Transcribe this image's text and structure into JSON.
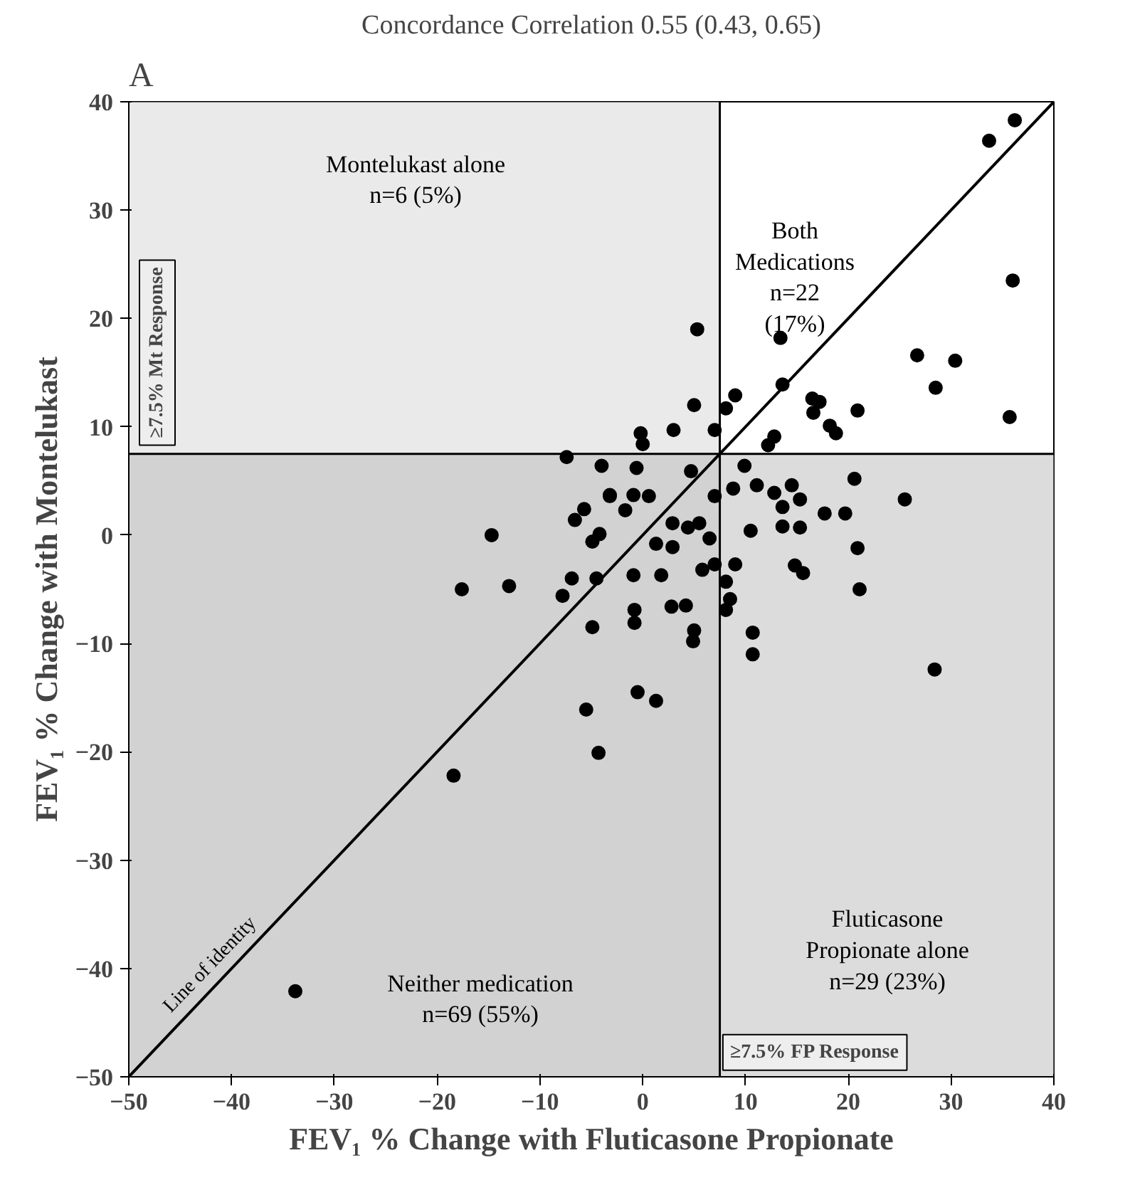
{
  "chart_data": {
    "type": "scatter",
    "title": "Concordance Correlation 0.55 (0.43, 0.65)",
    "xlabel": "FEV₁ % Change with Fluticasone Propionate",
    "ylabel": "FEV₁ % Change with Montelukast",
    "xlim": [
      -50,
      40
    ],
    "ylim": [
      -50,
      40
    ],
    "xticks": [
      -50,
      -40,
      -30,
      -20,
      -10,
      0,
      10,
      20,
      30,
      40
    ],
    "yticks": [
      -50,
      -40,
      -30,
      -20,
      -10,
      0,
      10,
      20,
      30,
      40
    ],
    "grid": false,
    "legend": false,
    "marker": "circle",
    "series": [
      {
        "color": "#000000",
        "x": [
          36.2,
          33.7,
          36.0,
          35.7,
          5.3,
          13.4,
          26.7,
          30.4,
          28.5,
          13.6,
          16.5,
          17.2,
          16.6,
          20.9,
          18.2,
          18.8,
          9.0,
          5.0,
          3.0,
          7.0,
          8.1,
          12.8,
          12.2,
          -0.2,
          0.0,
          20.6,
          25.5,
          17.7,
          19.7,
          20.9,
          21.1,
          28.4,
          10.7,
          10.7,
          14.8,
          15.6,
          13.6,
          13.6,
          15.3,
          14.5,
          15.3,
          12.8,
          11.1,
          10.5,
          9.9,
          8.8,
          9.0,
          8.1,
          8.1,
          8.5,
          7.0,
          5.8,
          5.0,
          4.9,
          4.2,
          2.8,
          1.8,
          -0.9,
          -0.8,
          -0.8,
          -0.5,
          1.3,
          -3.2,
          -0.9,
          -1.7,
          0.6,
          2.9,
          5.5,
          6.5,
          1.3,
          2.9,
          4.4,
          7.0,
          -0.6,
          4.7,
          -7.4,
          -4.0,
          -3.2,
          -5.7,
          -6.6,
          -4.2,
          -4.9,
          -14.7,
          -17.6,
          -13.0,
          -6.9,
          -7.8,
          -4.5,
          -4.9,
          -5.5,
          -4.3,
          -18.4,
          -33.8
        ],
        "values": [
          38.3,
          36.4,
          23.5,
          10.9,
          19.0,
          18.2,
          16.6,
          16.1,
          13.6,
          13.9,
          12.6,
          12.3,
          11.3,
          11.5,
          10.1,
          9.4,
          12.9,
          12.0,
          9.7,
          9.7,
          11.7,
          9.1,
          8.3,
          9.4,
          8.4,
          5.2,
          3.3,
          2.0,
          2.0,
          -1.2,
          -5.0,
          -12.4,
          -9.0,
          -11.0,
          -2.8,
          -3.5,
          2.6,
          0.8,
          0.7,
          4.6,
          3.3,
          3.9,
          4.6,
          0.4,
          6.4,
          4.3,
          -2.7,
          -4.3,
          -6.9,
          -5.9,
          -2.7,
          -3.2,
          -8.8,
          -9.8,
          -6.5,
          -6.6,
          -3.7,
          -3.7,
          -6.9,
          -8.1,
          -14.5,
          -15.3,
          3.6,
          3.7,
          2.3,
          3.6,
          1.1,
          1.1,
          -0.3,
          -0.8,
          -1.1,
          0.7,
          3.6,
          6.2,
          5.9,
          7.2,
          6.4,
          3.7,
          2.4,
          1.4,
          0.1,
          -0.6,
          0.0,
          -5.0,
          -4.7,
          -4.0,
          -5.6,
          -4.0,
          -8.5,
          -16.1,
          -20.1,
          -22.2,
          -42.1
        ]
      },
      {
        "type": "line",
        "name": "Line of identity",
        "color": "#000000",
        "line_style": "solid",
        "marker": "none",
        "x": [
          -50,
          40
        ],
        "values": [
          -50,
          40
        ]
      }
    ],
    "bands": [
      {
        "axis": "x",
        "from": -50,
        "to": 7.5,
        "color": "#d6d6d6"
      },
      {
        "axis": "y",
        "from": -50,
        "to": 7.5,
        "color": "#b9b9b9"
      }
    ],
    "ref_lines": [
      {
        "axis": "x",
        "value": 7.5,
        "label": "≥7.5% FP Response",
        "color": "#000000"
      },
      {
        "axis": "y",
        "value": 7.5,
        "label": "≥7.5% Mt Response",
        "color": "#000000"
      }
    ],
    "annotations": [
      "A",
      "Montelukast alone\nn=6 (5%)",
      "Both\nMedications\nn=22\n(17%)",
      "Fluticasone\nPropionate alone\nn=29 (23%)",
      "Neither medication\nn=69 (55%)"
    ]
  }
}
